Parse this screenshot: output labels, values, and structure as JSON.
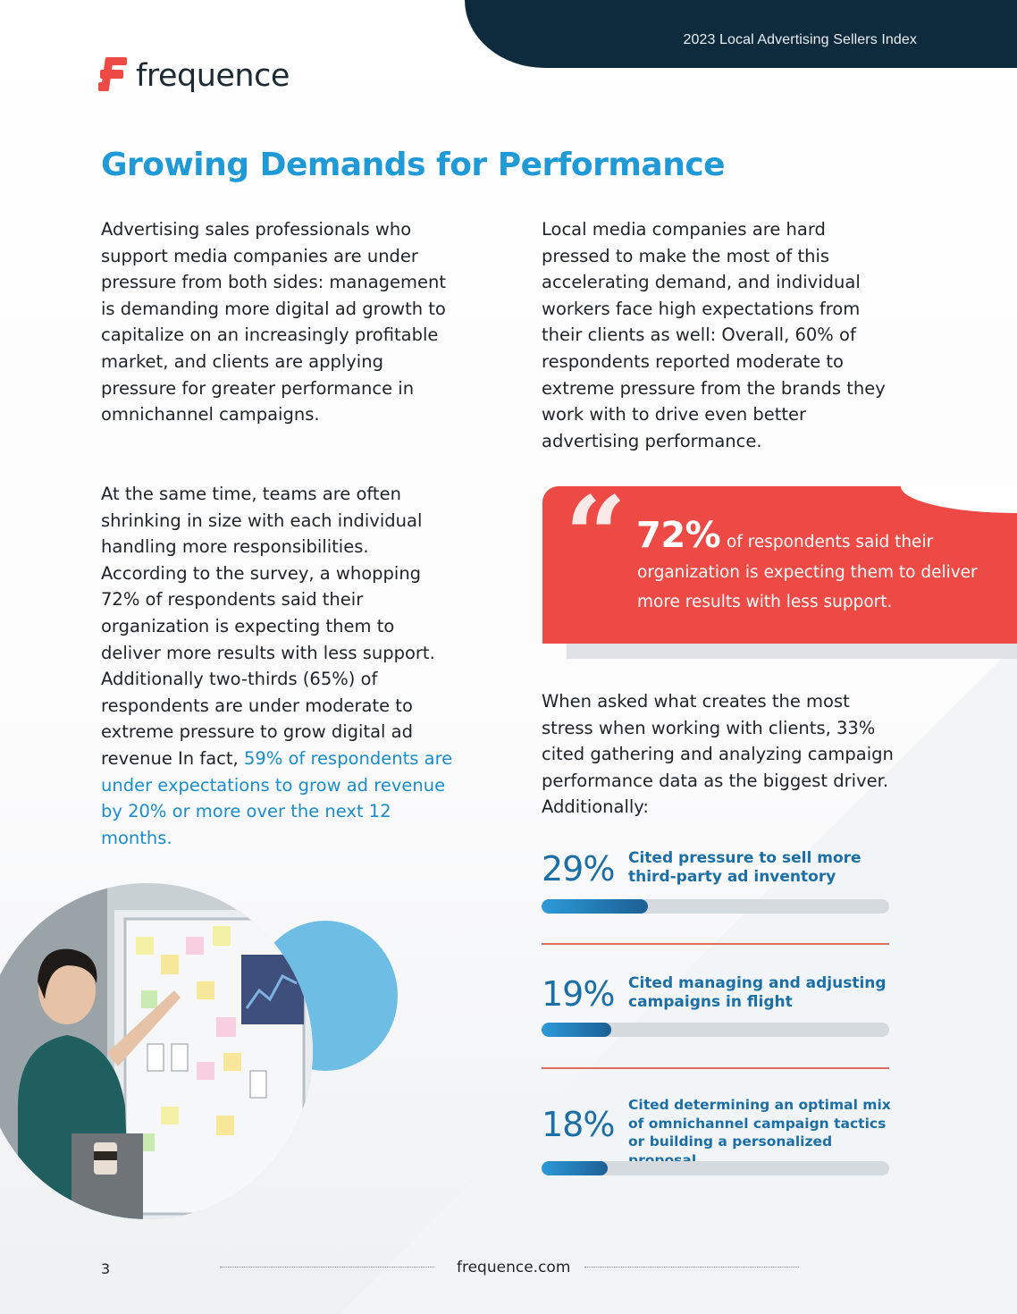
{
  "header": {
    "report_title": "2023 Local Advertising Sellers Index"
  },
  "logo": {
    "text": "frequence",
    "color": "#ee4a45"
  },
  "page_title": "Growing Demands for Performance",
  "left_column": {
    "p1": "Advertising sales professionals who support media companies are under pressure from both sides: management is demanding more digital ad growth to capitalize on an increasingly profitable market, and clients are applying pressure for greater performance in omnichannel campaigns.",
    "p2_plain": "At the same time, teams are often shrinking in size with each individual handling more responsibilities. According to the survey, a whopping 72% of respondents said their organization is expecting them to deliver more results with less support. Additionally two-thirds (65%) of respondents are under moderate to extreme pressure to grow digital ad revenue In fact, ",
    "p2_highlight": "59% of respondents are under expectations to grow ad revenue by 20% or more over the next 12 months."
  },
  "right_column": {
    "p3": "Local media companies are hard pressed to make the most of this accelerating demand, and individual workers face high expectations from their clients as well: Overall, 60% of respondents reported moderate to extreme pressure from the brands they work with to drive even better advertising performance.",
    "p4": "When asked what creates the most stress when working with clients, 33% cited gathering and analyzing campaign performance data as the biggest driver. Additionally:"
  },
  "quote": {
    "big": "72%",
    "text": "of respondents said their organization is expecting them to deliver more results with less support."
  },
  "stats": [
    {
      "pct": "29%",
      "value": 29,
      "label": "Cited pressure to sell more third-party ad inventory"
    },
    {
      "pct": "19%",
      "value": 19,
      "label": "Cited managing and adjusting campaigns in flight"
    },
    {
      "pct": "18%",
      "value": 18,
      "label": "Cited determining an optimal mix of omnichannel campaign tactics or building a personalized proposal"
    }
  ],
  "footer": {
    "page_number": "3",
    "url": "frequence.com"
  },
  "colors": {
    "accent_blue": "#1f9ad6",
    "stat_blue": "#1b6fa6",
    "quote_red": "#ee4a45",
    "header_navy": "#0e2b3d"
  }
}
